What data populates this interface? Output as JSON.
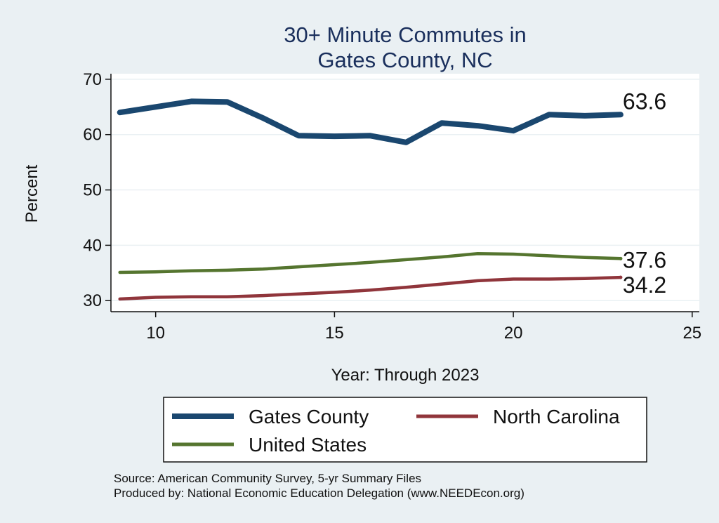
{
  "chart_data": {
    "type": "line",
    "title_lines": [
      "30+ Minute Commutes in",
      "Gates County, NC"
    ],
    "xlabel": "Year: Through 2023",
    "ylabel": "Percent",
    "xlim": [
      8.75,
      25.2
    ],
    "ylim": [
      28,
      71
    ],
    "xticks": [
      10,
      15,
      20,
      25
    ],
    "yticks": [
      30,
      40,
      50,
      60,
      70
    ],
    "x": [
      9,
      10,
      11,
      12,
      13,
      14,
      15,
      16,
      17,
      18,
      19,
      20,
      21,
      22,
      23
    ],
    "series": [
      {
        "name": "Gates County",
        "color": "#1a476f",
        "values": [
          64.0,
          65.0,
          66.0,
          65.9,
          63.0,
          59.8,
          59.7,
          59.8,
          58.6,
          62.1,
          61.6,
          60.7,
          63.6,
          63.4,
          63.6
        ],
        "end_label": "63.6"
      },
      {
        "name": "North Carolina",
        "color": "#90353b",
        "values": [
          30.3,
          30.6,
          30.7,
          30.7,
          30.9,
          31.2,
          31.5,
          31.9,
          32.4,
          33.0,
          33.6,
          33.9,
          33.9,
          34.0,
          34.2
        ],
        "end_label": "34.2"
      },
      {
        "name": "United States",
        "color": "#55752f",
        "values": [
          35.1,
          35.2,
          35.4,
          35.5,
          35.7,
          36.1,
          36.5,
          36.9,
          37.4,
          37.9,
          38.5,
          38.4,
          38.1,
          37.8,
          37.6
        ],
        "end_label": "37.6"
      }
    ],
    "legend": {
      "position": "bottom",
      "entries": [
        "Gates County",
        "North Carolina",
        "United States"
      ]
    },
    "source_lines": [
      "Source: American Community Survey, 5-yr Summary Files",
      "Produced by: National Economic Education Delegation (www.NEEDEcon.org)"
    ]
  }
}
